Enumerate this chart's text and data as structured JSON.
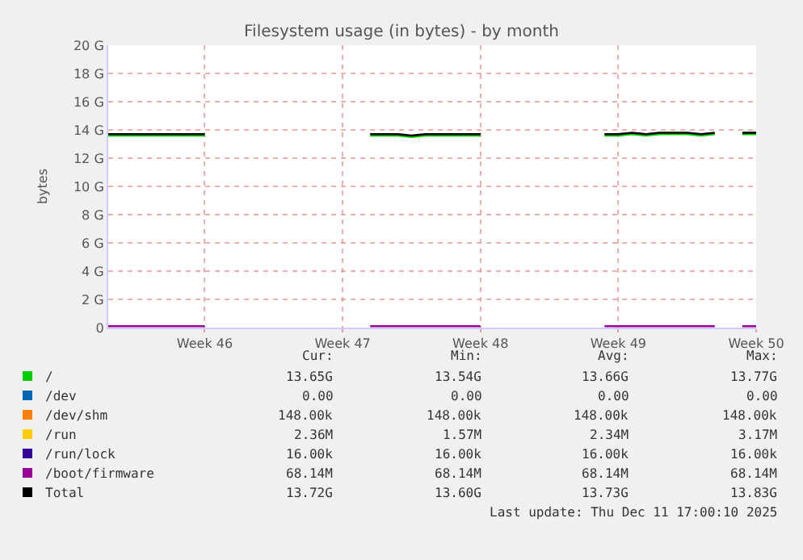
{
  "chart_data": {
    "type": "line",
    "title": "Filesystem usage (in bytes) - by month",
    "ylabel": "bytes",
    "categories": [
      null,
      null,
      null,
      null,
      null,
      null,
      null,
      "Week 46",
      null,
      null,
      null,
      null,
      null,
      null,
      null,
      null,
      null,
      "Week 47",
      null,
      null,
      null,
      null,
      null,
      null,
      null,
      null,
      null,
      "Week 48",
      null,
      null,
      null,
      null,
      null,
      null,
      null,
      null,
      null,
      "Week 49",
      null,
      null,
      null,
      null,
      null,
      null,
      null,
      null,
      null,
      "Week 50"
    ],
    "series": [
      {
        "name": "/",
        "color": "#00cc00",
        "values": [
          13.6,
          13.6,
          13.6,
          13.6,
          13.6,
          13.6,
          13.6,
          13.6,
          null,
          null,
          null,
          null,
          null,
          null,
          null,
          null,
          null,
          null,
          null,
          13.6,
          13.6,
          13.6,
          13.5,
          13.6,
          13.6,
          13.6,
          13.6,
          13.6,
          null,
          null,
          null,
          null,
          null,
          null,
          null,
          null,
          13.6,
          13.6,
          13.7,
          13.6,
          13.7,
          13.7,
          13.7,
          13.6,
          13.7,
          null,
          13.7,
          13.7
        ]
      },
      {
        "name": "/dev",
        "color": "#0066b3",
        "values": [
          null,
          null,
          null,
          null,
          null,
          null,
          null,
          null,
          null,
          null,
          null,
          null,
          null,
          null,
          null,
          null,
          null,
          null,
          null,
          null,
          null,
          null,
          null,
          null,
          null,
          null,
          null,
          null,
          null,
          null,
          null,
          null,
          null,
          null,
          null,
          null,
          null,
          null,
          null,
          null,
          null,
          null,
          null,
          null,
          null,
          null,
          null,
          null
        ]
      },
      {
        "name": "/dev/shm",
        "color": "#ff8000",
        "values": [
          null,
          null,
          null,
          null,
          null,
          null,
          null,
          null,
          null,
          null,
          null,
          null,
          null,
          null,
          null,
          null,
          null,
          null,
          null,
          null,
          null,
          null,
          null,
          null,
          null,
          null,
          null,
          null,
          null,
          null,
          null,
          null,
          null,
          null,
          null,
          null,
          null,
          null,
          null,
          null,
          null,
          null,
          null,
          null,
          null,
          null,
          null,
          null
        ]
      },
      {
        "name": "/run",
        "color": "#ffcc00",
        "values": [
          null,
          null,
          null,
          null,
          null,
          null,
          null,
          null,
          null,
          null,
          null,
          null,
          null,
          null,
          null,
          null,
          null,
          null,
          null,
          null,
          null,
          null,
          null,
          null,
          null,
          null,
          null,
          null,
          null,
          null,
          null,
          null,
          null,
          null,
          null,
          null,
          null,
          null,
          null,
          null,
          null,
          null,
          null,
          null,
          null,
          null,
          null,
          null
        ]
      },
      {
        "name": "/run/lock",
        "color": "#330099",
        "values": [
          null,
          null,
          null,
          null,
          null,
          null,
          null,
          null,
          null,
          null,
          null,
          null,
          null,
          null,
          null,
          null,
          null,
          null,
          null,
          null,
          null,
          null,
          null,
          null,
          null,
          null,
          null,
          null,
          null,
          null,
          null,
          null,
          null,
          null,
          null,
          null,
          null,
          null,
          null,
          null,
          null,
          null,
          null,
          null,
          null,
          null,
          null,
          null
        ]
      },
      {
        "name": "/boot/firmware",
        "color": "#990099",
        "values": [
          0.1,
          0.1,
          0.1,
          0.1,
          0.1,
          0.1,
          0.1,
          0.1,
          null,
          null,
          null,
          null,
          null,
          null,
          null,
          null,
          null,
          null,
          null,
          0.1,
          0.1,
          0.1,
          0.1,
          0.1,
          0.1,
          0.1,
          0.1,
          0.1,
          null,
          null,
          null,
          null,
          null,
          null,
          null,
          null,
          0.1,
          0.1,
          0.1,
          0.1,
          0.1,
          0.1,
          0.1,
          0.1,
          0.1,
          null,
          0.1,
          0.1
        ]
      },
      {
        "name": "Total",
        "color": "#000000",
        "values": [
          13.7,
          13.7,
          13.7,
          13.7,
          13.7,
          13.7,
          13.7,
          13.7,
          null,
          null,
          null,
          null,
          null,
          null,
          null,
          null,
          null,
          null,
          null,
          13.7,
          13.7,
          13.7,
          13.6,
          13.7,
          13.7,
          13.7,
          13.7,
          13.7,
          null,
          null,
          null,
          null,
          null,
          null,
          null,
          null,
          13.7,
          13.7,
          13.8,
          13.7,
          13.8,
          13.8,
          13.8,
          13.7,
          13.8,
          null,
          13.8,
          13.8
        ]
      }
    ],
    "ylim": [
      0,
      20
    ],
    "yticks": [
      0,
      {
        "value": 2,
        "label": "2 G"
      },
      {
        "value": 4,
        "label": "4 G"
      },
      {
        "value": 6,
        "label": "6 G"
      },
      {
        "value": 8,
        "label": "8 G"
      },
      {
        "value": 10,
        "label": "10 G"
      },
      {
        "value": 12,
        "label": "12 G"
      },
      {
        "value": 14,
        "label": "14 G"
      },
      {
        "value": 16,
        "label": "16 G"
      },
      {
        "value": 18,
        "label": "18 G"
      },
      {
        "value": 20,
        "label": "20 G"
      }
    ],
    "grid": true,
    "legend": "bottom",
    "marker": "none",
    "line_style": "solid",
    "annotations": [
      "Cur:",
      "Min:",
      "Avg:",
      "Max:",
      "13.65G",
      "13.54G",
      "13.66G",
      "13.77G",
      "0.00",
      "0.00",
      "0.00",
      "0.00",
      "148.00k",
      "148.00k",
      "148.00k",
      "148.00k",
      "2.36M",
      "1.57M",
      "2.34M",
      "3.17M",
      "16.00k",
      "16.00k",
      "16.00k",
      "16.00k",
      "68.14M",
      "68.14M",
      "68.14M",
      "68.14M",
      "13.72G",
      "13.60G",
      "13.73G",
      "13.83G",
      "Last update: Thu Dec 11 17:00:10 2025"
    ]
  }
}
